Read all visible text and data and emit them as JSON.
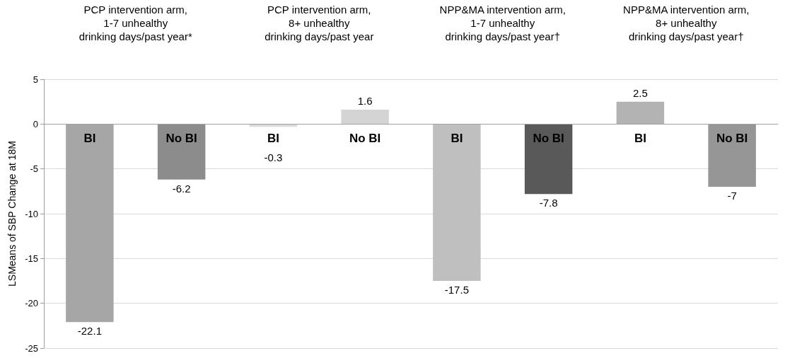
{
  "chart_data": {
    "type": "bar",
    "ylabel": "LSMeans of SBP Change at 18M",
    "categories": [
      "BI",
      "No BI",
      "BI",
      "No BI",
      "BI",
      "No BI",
      "BI",
      "No BI"
    ],
    "values": [
      -22.1,
      -6.2,
      -0.3,
      1.6,
      -17.5,
      -7.8,
      2.5,
      -7
    ],
    "colors": [
      "#a6a6a6",
      "#8c8c8c",
      "#d9d9d9",
      "#d4d4d4",
      "#bfbfbf",
      "#595959",
      "#b3b3b3",
      "#969696"
    ],
    "ylim": [
      -25,
      5
    ],
    "yticks": [
      -25,
      -20,
      -15,
      -10,
      -5,
      0,
      5
    ],
    "grid": "y",
    "data_labels": true,
    "annotations": [
      "PCP intervention arm,\n1-7 unhealthy\ndrinking days/past year*",
      "PCP intervention arm,\n8+ unhealthy\ndrinking days/past year",
      "NPP&MA intervention arm,\n1-7 unhealthy\ndrinking days/past year†",
      "NPP&MA intervention arm,\n8+ unhealthy\ndrinking days/past year†"
    ]
  }
}
